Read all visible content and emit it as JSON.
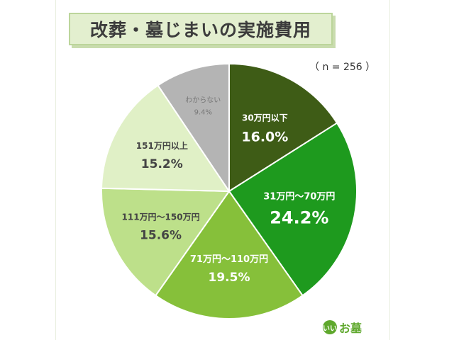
{
  "chart_data": {
    "type": "pie",
    "title": "改葬・墓じまいの実施費用",
    "sample_size": "（ n = 256 ）",
    "slices": [
      {
        "label": "30万円以下",
        "value": 16.0,
        "display": "16.0%",
        "color": "#3e5c16"
      },
      {
        "label": "31万円～70万円",
        "value": 24.2,
        "display": "24.2%",
        "color": "#1e9a1e"
      },
      {
        "label": "71万円～110万円",
        "value": 19.5,
        "display": "19.5%",
        "color": "#86c03a"
      },
      {
        "label": "111万円～150万円",
        "value": 15.6,
        "display": "15.6%",
        "color": "#bde08a"
      },
      {
        "label": "151万円以上",
        "value": 15.2,
        "display": "15.2%",
        "color": "#e0f0c6"
      },
      {
        "label": "わからない",
        "value": 9.4,
        "display": "9.4%",
        "color": "#b4b4b4"
      }
    ],
    "start": "12 o'clock",
    "direction": "clockwise"
  },
  "brand": {
    "mark": "いい",
    "word": "お墓"
  }
}
